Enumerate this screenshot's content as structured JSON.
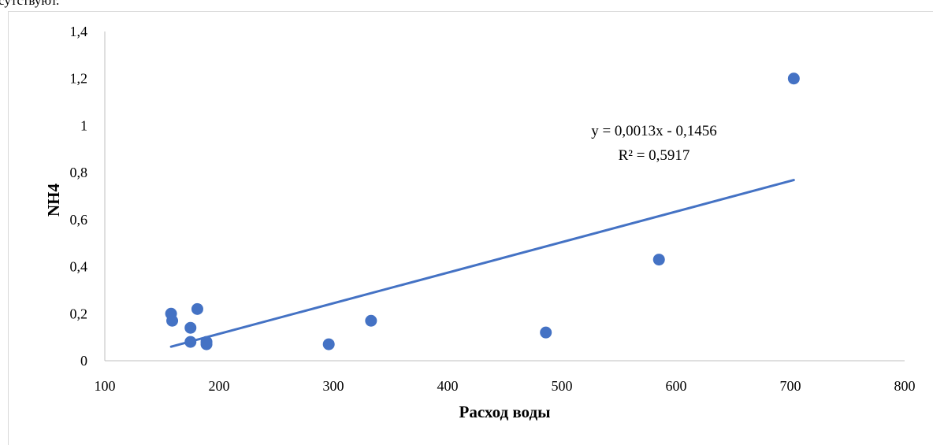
{
  "page": {
    "top_text": "сутствуют."
  },
  "chart_data": {
    "type": "scatter",
    "title": "",
    "xlabel": "Расход воды",
    "ylabel": "NH4",
    "xlim": [
      100,
      800
    ],
    "ylim": [
      0,
      1.4
    ],
    "x_ticks": [
      100,
      200,
      300,
      400,
      500,
      600,
      700,
      800
    ],
    "x_tick_labels": [
      "100",
      "200",
      "300",
      "400",
      "500",
      "600",
      "700",
      "800"
    ],
    "y_ticks": [
      0,
      0.2,
      0.4,
      0.6,
      0.8,
      1,
      1.2,
      1.4
    ],
    "y_tick_labels": [
      "0",
      "0,2",
      "0,4",
      "0,6",
      "0,8",
      "1",
      "1,2",
      "1,4"
    ],
    "grid": false,
    "legend": "none",
    "series": [
      {
        "color": "#4472c4",
        "points": [
          {
            "x": 158,
            "y": 0.2
          },
          {
            "x": 159,
            "y": 0.17
          },
          {
            "x": 175,
            "y": 0.14
          },
          {
            "x": 175,
            "y": 0.08
          },
          {
            "x": 181,
            "y": 0.22
          },
          {
            "x": 189,
            "y": 0.08
          },
          {
            "x": 189,
            "y": 0.07
          },
          {
            "x": 296,
            "y": 0.07
          },
          {
            "x": 333,
            "y": 0.17
          },
          {
            "x": 486,
            "y": 0.12
          },
          {
            "x": 585,
            "y": 0.43
          },
          {
            "x": 703,
            "y": 1.2
          }
        ]
      }
    ],
    "trendline": {
      "type": "linear",
      "slope": 0.0013,
      "intercept": -0.1456,
      "x_range": [
        158,
        703
      ],
      "equation": "y = 0,0013x - 0,1456",
      "r_squared": "R² = 0,5917",
      "color": "#4472c4"
    }
  }
}
